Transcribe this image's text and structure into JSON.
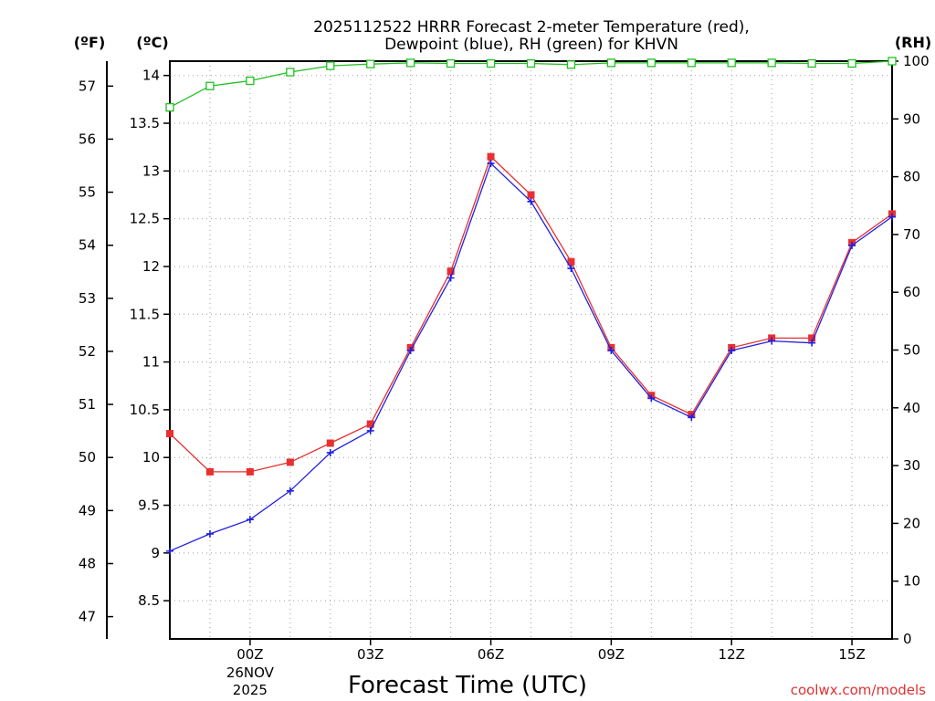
{
  "chart_data": {
    "type": "line",
    "title_line1": "2025112522 HRRR Forecast 2-meter Temperature (red),",
    "title_line2": "Dewpoint (blue), RH (green) for KHVN",
    "xlabel": "Forecast Time (UTC)",
    "credit": "coolwx.com/models",
    "unit_f": "(ºF)",
    "unit_c": "(ºC)",
    "unit_rh": "(RH)",
    "x_hours": [
      -2,
      -1,
      0,
      1,
      2,
      3,
      4,
      5,
      6,
      7,
      8,
      9,
      10,
      11,
      12,
      13,
      14,
      15,
      16
    ],
    "x_range": [
      -2,
      16
    ],
    "x_ticks": [
      {
        "hour": 0,
        "label": "00Z",
        "sub1": "26NOV",
        "sub2": "2025"
      },
      {
        "hour": 3,
        "label": "03Z"
      },
      {
        "hour": 6,
        "label": "06Z"
      },
      {
        "hour": 9,
        "label": "09Z"
      },
      {
        "hour": 12,
        "label": "12Z"
      },
      {
        "hour": 15,
        "label": "15Z"
      }
    ],
    "c_range": [
      8.1,
      14.15
    ],
    "c_ticks": [
      "8.5",
      "9",
      "9.5",
      "10",
      "10.5",
      "11",
      "11.5",
      "12",
      "12.5",
      "13",
      "13.5",
      "14"
    ],
    "f_ticks": [
      "47",
      "48",
      "49",
      "50",
      "51",
      "52",
      "53",
      "54",
      "55",
      "56",
      "57"
    ],
    "rh_range": [
      0,
      100
    ],
    "rh_ticks": [
      "0",
      "10",
      "20",
      "30",
      "40",
      "50",
      "60",
      "70",
      "80",
      "90",
      "100"
    ],
    "series": [
      {
        "name": "Temperature",
        "color": "#e83030",
        "marker": "filled-square",
        "values": [
          10.25,
          9.85,
          9.85,
          9.95,
          10.15,
          10.35,
          11.15,
          11.95,
          13.15,
          12.75,
          12.05,
          11.15,
          10.65,
          10.45,
          11.15,
          11.25,
          11.25,
          12.25,
          12.55
        ]
      },
      {
        "name": "Dewpoint",
        "color": "#2020e0",
        "marker": "plus",
        "values": [
          9.02,
          9.2,
          9.35,
          9.65,
          10.05,
          10.28,
          11.12,
          11.88,
          13.08,
          12.68,
          11.98,
          11.12,
          10.62,
          10.42,
          11.12,
          11.22,
          11.2,
          12.22,
          12.52
        ]
      },
      {
        "name": "RH",
        "color": "#20c020",
        "marker": "open-square",
        "values": [
          92,
          95.7,
          96.6,
          98.1,
          99.2,
          99.5,
          99.7,
          99.6,
          99.6,
          99.6,
          99.4,
          99.7,
          99.7,
          99.7,
          99.7,
          99.7,
          99.6,
          99.6,
          100
        ]
      }
    ]
  }
}
